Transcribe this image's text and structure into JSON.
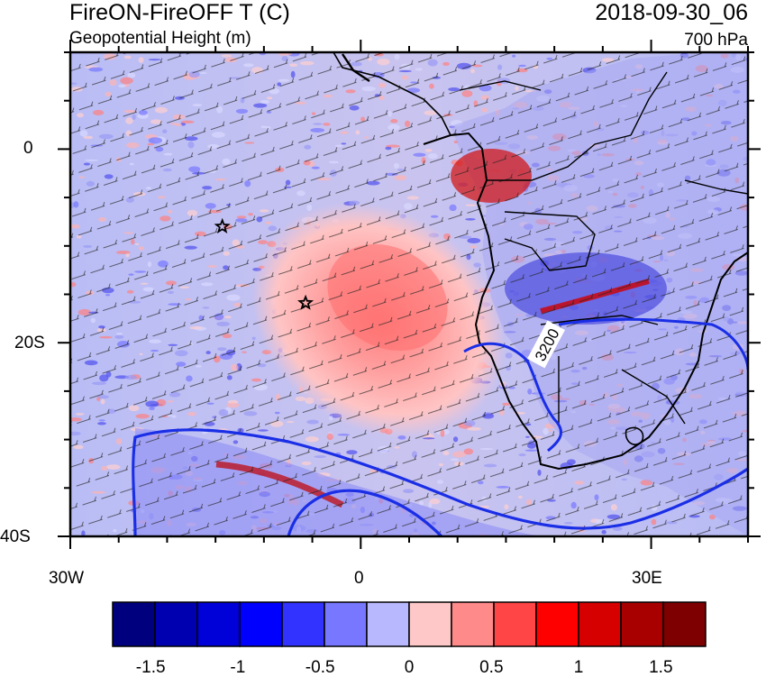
{
  "header": {
    "title": "FireON-FireOFF T (C)",
    "subtitle": "Geopotential Height (m)",
    "date": "2018-09-30_06",
    "level": "700 hPa"
  },
  "axes": {
    "y_ticks": [
      "0",
      "20S",
      "40S"
    ],
    "x_ticks": [
      "30W",
      "0",
      "30E"
    ]
  },
  "contour": {
    "label": "3200",
    "color": "#1a2ee6"
  },
  "markers": [
    {
      "name": "star",
      "lon": -14.3,
      "lat": -8.0
    },
    {
      "name": "star",
      "lon": -5.7,
      "lat": -15.9
    }
  ],
  "colorbar": {
    "colors": [
      "#00007f",
      "#0000b0",
      "#0000d8",
      "#0000ff",
      "#3333ff",
      "#7777ff",
      "#b8b8ff",
      "#ffc8c8",
      "#ff8a8a",
      "#ff4545",
      "#ff0000",
      "#d60000",
      "#a80000",
      "#7f0000"
    ],
    "labels": [
      "-1.5",
      "-1",
      "-0.5",
      "0",
      "0.5",
      "1",
      "1.5"
    ]
  }
}
